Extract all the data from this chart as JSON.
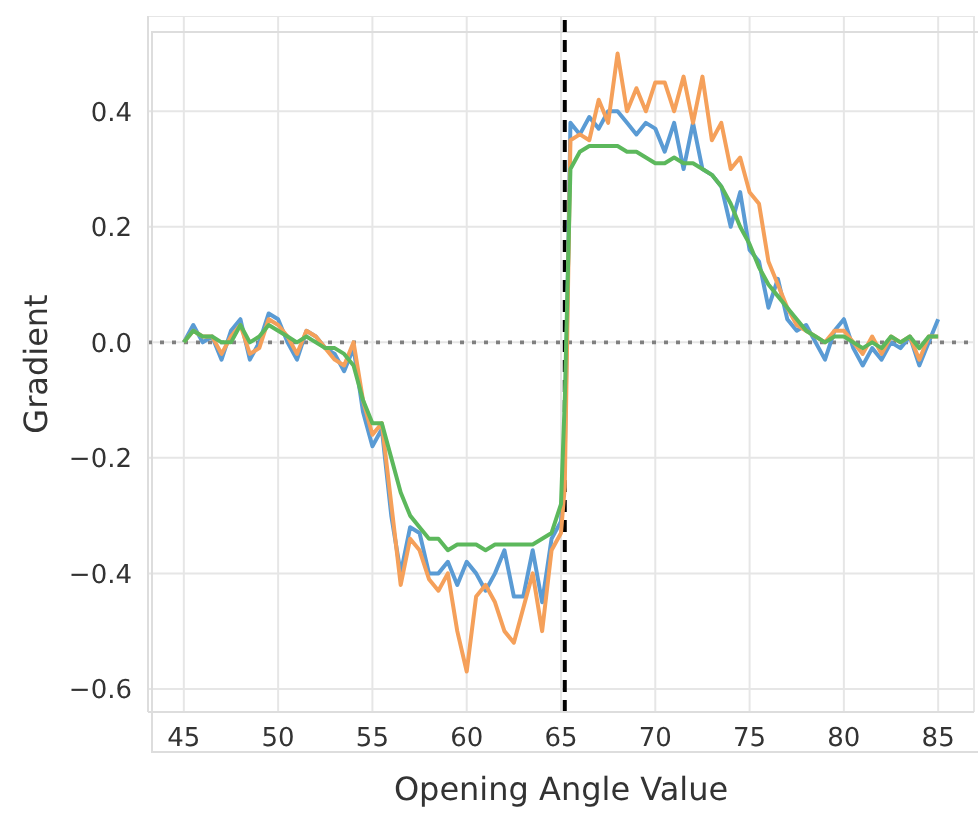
{
  "chart_data": {
    "type": "line",
    "xlabel": "Opening Angle Value",
    "ylabel": "Gradient",
    "x": [
      45,
      45.5,
      46,
      46.5,
      47,
      47.5,
      48,
      48.5,
      49,
      49.5,
      50,
      50.5,
      51,
      51.5,
      52,
      52.5,
      53,
      53.5,
      54,
      54.5,
      55,
      55.5,
      56,
      56.5,
      57,
      57.5,
      58,
      58.5,
      59,
      59.5,
      60,
      60.5,
      61,
      61.5,
      62,
      62.5,
      63,
      63.5,
      64,
      64.5,
      65,
      65.2,
      65.5,
      66,
      66.5,
      67,
      67.5,
      68,
      68.5,
      69,
      69.5,
      70,
      70.5,
      71,
      71.5,
      72,
      72.5,
      73,
      73.5,
      74,
      74.5,
      75,
      75.5,
      76,
      76.5,
      77,
      77.5,
      78,
      78.5,
      79,
      79.5,
      80,
      80.5,
      81,
      81.5,
      82,
      82.5,
      83,
      83.5,
      84,
      84.5,
      85
    ],
    "series": [
      {
        "color": "#5a9bd4",
        "values": [
          0,
          0.03,
          0,
          0.01,
          -0.03,
          0.02,
          0.04,
          -0.03,
          0,
          0.05,
          0.04,
          0,
          -0.03,
          0.02,
          0.01,
          -0.01,
          -0.02,
          -0.05,
          -0.01,
          -0.12,
          -0.18,
          -0.15,
          -0.3,
          -0.4,
          -0.32,
          -0.33,
          -0.4,
          -0.4,
          -0.38,
          -0.42,
          -0.38,
          -0.4,
          -0.43,
          -0.4,
          -0.36,
          -0.44,
          -0.44,
          -0.36,
          -0.45,
          -0.34,
          -0.31,
          -0.2,
          0.38,
          0.36,
          0.39,
          0.37,
          0.4,
          0.4,
          0.38,
          0.36,
          0.38,
          0.37,
          0.33,
          0.38,
          0.3,
          0.38,
          0.3,
          0.29,
          0.27,
          0.2,
          0.26,
          0.16,
          0.14,
          0.06,
          0.11,
          0.04,
          0.02,
          0.03,
          0,
          -0.03,
          0.02,
          0.04,
          -0.01,
          -0.04,
          -0.01,
          -0.03,
          0,
          -0.01,
          0.01,
          -0.04,
          0,
          0.04
        ]
      },
      {
        "color": "#f5a05a",
        "values": [
          0,
          0.02,
          0.01,
          0.01,
          -0.02,
          0.01,
          0.03,
          -0.02,
          -0.01,
          0.04,
          0.03,
          0.01,
          -0.02,
          0.02,
          0.01,
          -0.01,
          -0.03,
          -0.04,
          0,
          -0.1,
          -0.16,
          -0.14,
          -0.28,
          -0.42,
          -0.34,
          -0.36,
          -0.41,
          -0.43,
          -0.4,
          -0.5,
          -0.57,
          -0.44,
          -0.42,
          -0.45,
          -0.5,
          -0.52,
          -0.46,
          -0.4,
          -0.5,
          -0.36,
          -0.33,
          -0.25,
          0.35,
          0.36,
          0.35,
          0.42,
          0.38,
          0.5,
          0.4,
          0.44,
          0.4,
          0.45,
          0.45,
          0.4,
          0.46,
          0.38,
          0.46,
          0.35,
          0.38,
          0.3,
          0.32,
          0.26,
          0.24,
          0.14,
          0.1,
          0.06,
          0.03,
          0.02,
          0.01,
          0,
          0.02,
          0.02,
          0,
          -0.02,
          0.01,
          -0.02,
          0.01,
          0,
          0.01,
          -0.03,
          0.01,
          0.01
        ]
      },
      {
        "color": "#5cb85c",
        "values": [
          0,
          0.02,
          0.01,
          0.01,
          0,
          0,
          0.03,
          0,
          0.01,
          0.03,
          0.02,
          0.01,
          0,
          0.01,
          0,
          -0.01,
          -0.01,
          -0.02,
          -0.04,
          -0.1,
          -0.14,
          -0.14,
          -0.2,
          -0.26,
          -0.3,
          -0.32,
          -0.34,
          -0.34,
          -0.36,
          -0.35,
          -0.35,
          -0.35,
          -0.36,
          -0.35,
          -0.35,
          -0.35,
          -0.35,
          -0.35,
          -0.34,
          -0.33,
          -0.28,
          -0.1,
          0.3,
          0.33,
          0.34,
          0.34,
          0.34,
          0.34,
          0.33,
          0.33,
          0.32,
          0.31,
          0.31,
          0.32,
          0.31,
          0.31,
          0.3,
          0.29,
          0.27,
          0.24,
          0.2,
          0.17,
          0.13,
          0.1,
          0.08,
          0.06,
          0.04,
          0.02,
          0.01,
          0,
          0.01,
          0.01,
          0,
          -0.01,
          0,
          -0.01,
          0.01,
          0,
          0.01,
          -0.01,
          0.01,
          0.01
        ]
      }
    ],
    "xlim": [
      43.1,
      86.9
    ],
    "xticks": [
      45,
      50,
      55,
      60,
      65,
      70,
      75,
      80,
      85
    ],
    "ylim": [
      -0.64,
      0.565
    ],
    "yticks": [
      {
        "value": -0.6,
        "label": "−0.6"
      },
      {
        "value": -0.4,
        "label": "−0.4"
      },
      {
        "value": -0.2,
        "label": "−0.2"
      },
      {
        "value": 0,
        "label": "0.0"
      },
      {
        "value": 0.2,
        "label": "0.2"
      },
      {
        "value": 0.4,
        "label": "0.4"
      }
    ],
    "ref_lines": [
      {
        "axis": "x",
        "value": 65.2,
        "color": "#000000",
        "line_style": "dashed"
      },
      {
        "axis": "y",
        "value": 0,
        "color": "#808080",
        "line_style": "dotted"
      }
    ],
    "grid": true,
    "legend": false,
    "marker": "none",
    "line_style": "solid"
  }
}
